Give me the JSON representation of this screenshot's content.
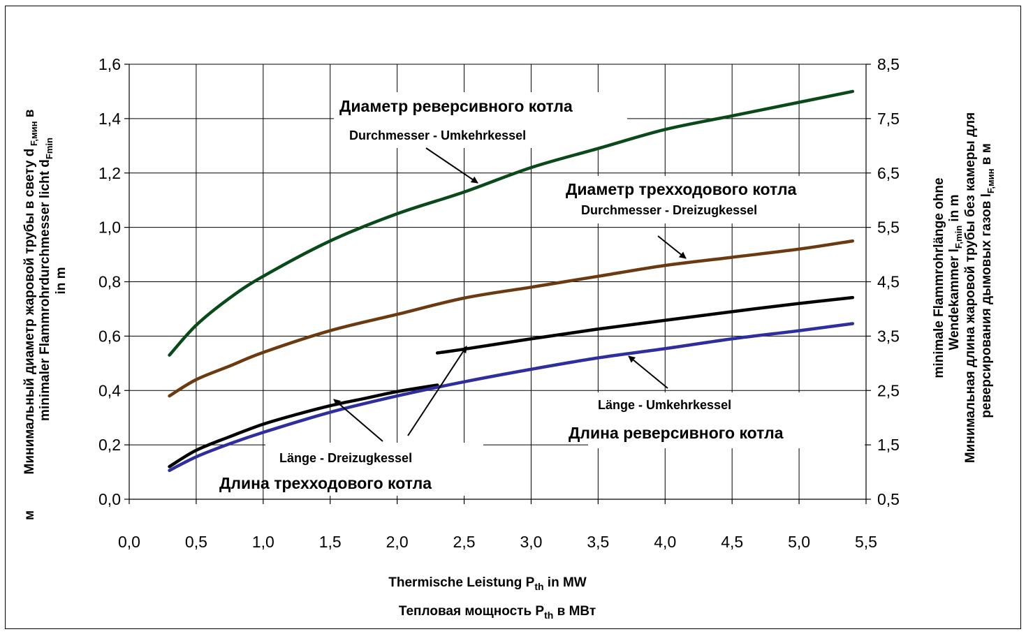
{
  "chart_data": {
    "type": "line",
    "x_axis": {
      "range": [
        0,
        5.5
      ],
      "ticks": [
        "0,0",
        "0,5",
        "1,0",
        "1,5",
        "2,0",
        "2,5",
        "3,0",
        "3,5",
        "4,0",
        "4,5",
        "5,0",
        "5,5"
      ],
      "title_de": "Thermische Leistung P",
      "title_de_sub": "th",
      "title_de_tail": " in MW",
      "title_ru": "Тепловая мощность P",
      "title_ru_sub": "th",
      "title_ru_tail": " в МВт"
    },
    "y_left": {
      "range": [
        0,
        1.6
      ],
      "ticks": [
        "0,0",
        "0,2",
        "0,4",
        "0,6",
        "0,8",
        "1,0",
        "1,2",
        "1,4",
        "1,6"
      ],
      "title_ru_a": "Минимальный диаметр жаровой трубы в свету d",
      "title_ru_a_sub": " F,мин",
      "title_ru_a_tail": " в",
      "title_de_a": "minimaler Flammrohrdurchmesser licht d",
      "title_de_a_sub": "Fmin",
      "title_m": "in m",
      "title_m_ru": "м"
    },
    "y_right": {
      "range": [
        0.5,
        8.5
      ],
      "ticks": [
        "0,5",
        "1,5",
        "2,5",
        "3,5",
        "4,5",
        "5,5",
        "6,5",
        "7,5",
        "8,5"
      ],
      "title_line1": "minimale Flammrohrlänge ohne",
      "title_line2": "Wendekammer l",
      "title_line2_sub": "F,min",
      "title_line2_tail": " in m",
      "title_line3": "Минимальная длина  жаровой трубы без камеры для",
      "title_line4": "реверсирования дымовых газов l",
      "title_line4_sub": "F,мин",
      "title_line4_tail": " в м"
    },
    "grid": true,
    "series": [
      {
        "name": "Durchmesser - Umkehrkessel",
        "name_ru": "Диаметр реверсивного котла",
        "color": "#0a4a1a",
        "axis": "left",
        "x": [
          0.3,
          0.5,
          0.75,
          1.0,
          1.5,
          2.0,
          2.5,
          3.0,
          3.5,
          4.0,
          4.5,
          5.0,
          5.4
        ],
        "y": [
          0.53,
          0.64,
          0.74,
          0.82,
          0.95,
          1.05,
          1.13,
          1.22,
          1.29,
          1.36,
          1.41,
          1.46,
          1.5
        ]
      },
      {
        "name": "Durchmesser - Dreizugkessel",
        "name_ru": "Диаметр трехходового котла",
        "color": "#6b3a10",
        "axis": "left",
        "x": [
          0.3,
          0.5,
          0.75,
          1.0,
          1.5,
          2.0,
          2.5,
          3.0,
          3.5,
          4.0,
          4.5,
          5.0,
          5.4
        ],
        "y": [
          0.38,
          0.44,
          0.49,
          0.54,
          0.62,
          0.68,
          0.74,
          0.78,
          0.82,
          0.86,
          0.89,
          0.92,
          0.95
        ]
      },
      {
        "name": "Länge - Dreizugkessel",
        "name_ru": "Длина трехходового котла",
        "color": "#000000",
        "axis": "right",
        "segments": [
          {
            "x": [
              0.3,
              0.5,
              0.75,
              1.0,
              1.25,
              1.5,
              1.75,
              2.0,
              2.3
            ],
            "y": [
              1.1,
              1.4,
              1.65,
              1.88,
              2.06,
              2.22,
              2.35,
              2.48,
              2.6
            ]
          },
          {
            "x": [
              2.3,
              2.5,
              3.0,
              3.5,
              4.0,
              4.5,
              5.0,
              5.4
            ],
            "y": [
              3.19,
              3.26,
              3.45,
              3.63,
              3.79,
              3.95,
              4.1,
              4.21
            ]
          }
        ]
      },
      {
        "name": "Länge - Umkehrkessel",
        "name_ru": "Длина реверсивного котла",
        "color": "#2e2e9c",
        "axis": "right",
        "x": [
          0.3,
          0.5,
          0.75,
          1.0,
          1.5,
          2.0,
          2.5,
          3.0,
          3.5,
          4.0,
          4.5,
          5.0,
          5.4
        ],
        "y": [
          1.03,
          1.28,
          1.52,
          1.73,
          2.1,
          2.4,
          2.66,
          2.89,
          3.1,
          3.27,
          3.45,
          3.6,
          3.73
        ]
      }
    ],
    "annotations": {
      "d_um_ru": "Диаметр реверсивного котла",
      "d_um_de": "Durchmesser - Umkehrkessel",
      "d_dr_ru": "Диаметр трехходового котла",
      "d_dr_de": "Durchmesser - Dreizugkessel",
      "l_um_de": "Länge - Umkehrkessel",
      "l_um_ru": "Длина реверсивного котла",
      "l_dr_de": "Länge - Dreizugkessel",
      "l_dr_ru": "Длина трехходового котла"
    }
  }
}
